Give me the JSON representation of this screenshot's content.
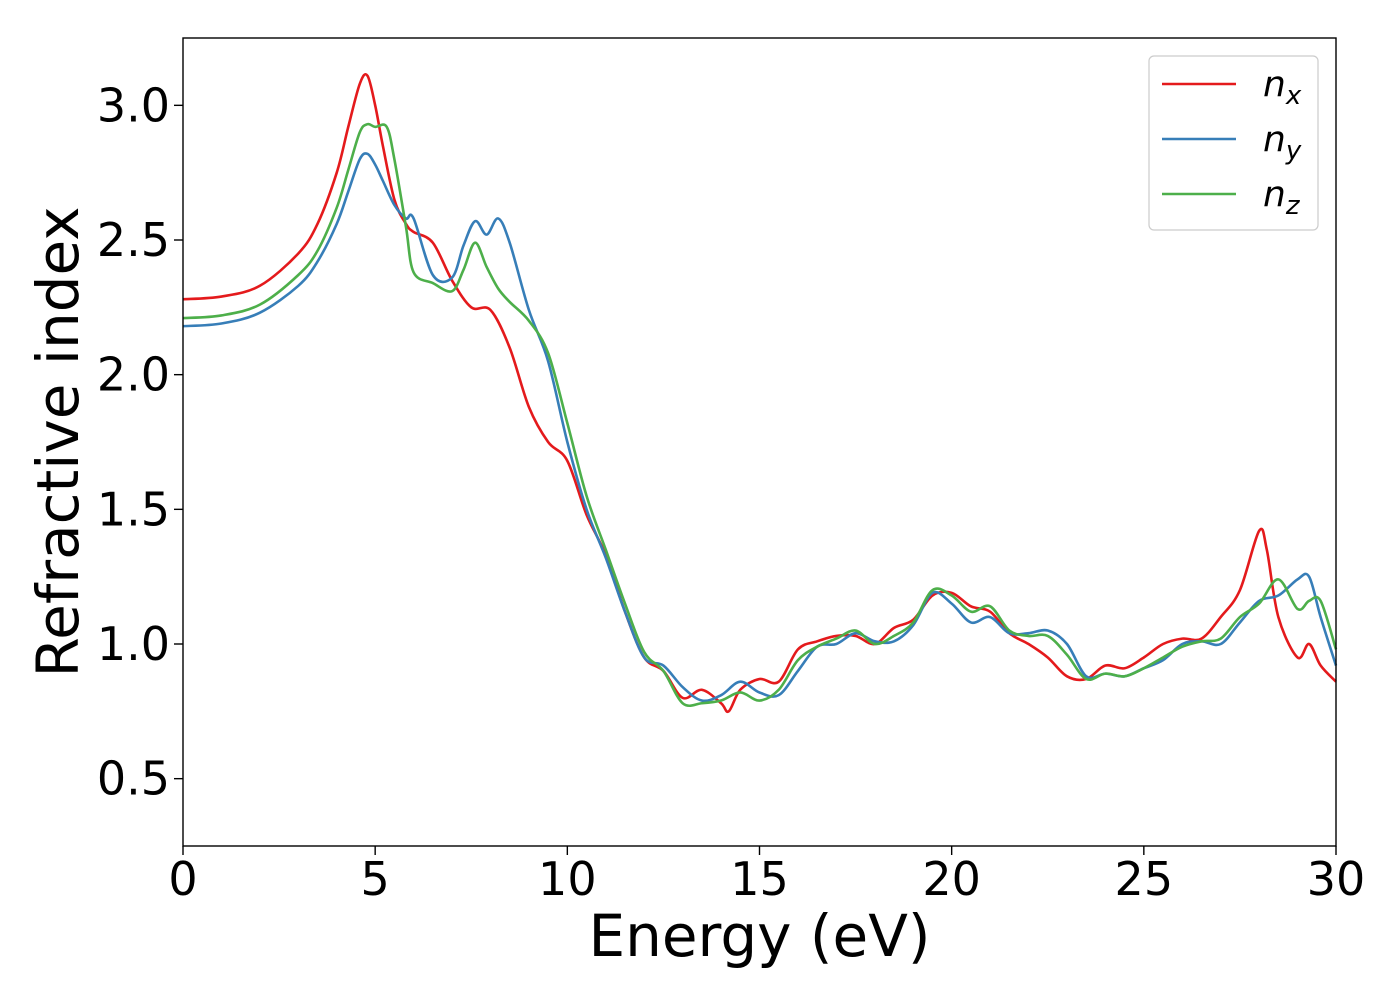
{
  "chart_data": {
    "type": "line",
    "title": "",
    "xlabel": "Energy (eV)",
    "ylabel": "Refractive index",
    "xlim": [
      0,
      30
    ],
    "ylim": [
      0.25,
      3.25
    ],
    "xticks": [
      0,
      5,
      10,
      15,
      20,
      25,
      30
    ],
    "xtick_labels": [
      "0",
      "5",
      "10",
      "15",
      "20",
      "25",
      "30"
    ],
    "yticks": [
      0.5,
      1.0,
      1.5,
      2.0,
      2.5,
      3.0
    ],
    "ytick_labels": [
      "0.5",
      "1.0",
      "1.5",
      "2.0",
      "2.5",
      "3.0"
    ],
    "grid": false,
    "legend_position": "top-right",
    "series": [
      {
        "name": "n_x",
        "label_main": "n",
        "label_sub": "x",
        "color": "#e41a1c",
        "x": [
          0,
          1,
          2,
          3,
          3.5,
          4,
          4.3,
          4.6,
          4.8,
          5.0,
          5.2,
          5.5,
          5.8,
          6.0,
          6.5,
          7.0,
          7.5,
          8.0,
          8.5,
          9.0,
          9.5,
          10.0,
          10.5,
          11.0,
          11.5,
          12.0,
          12.5,
          13.0,
          13.5,
          14.0,
          14.2,
          14.5,
          15.0,
          15.5,
          16.0,
          16.5,
          17.0,
          17.5,
          18.0,
          18.5,
          19.0,
          19.5,
          20.0,
          20.5,
          21.0,
          21.5,
          22.0,
          22.5,
          23.0,
          23.5,
          24.0,
          24.5,
          25.0,
          25.5,
          26.0,
          26.5,
          27.0,
          27.5,
          28.0,
          28.2,
          28.5,
          29.0,
          29.3,
          29.6,
          30.0
        ],
        "y": [
          2.28,
          2.29,
          2.33,
          2.45,
          2.56,
          2.75,
          2.92,
          3.08,
          3.11,
          3.0,
          2.85,
          2.65,
          2.56,
          2.53,
          2.49,
          2.35,
          2.25,
          2.24,
          2.1,
          1.88,
          1.75,
          1.68,
          1.48,
          1.33,
          1.12,
          0.95,
          0.9,
          0.8,
          0.83,
          0.78,
          0.75,
          0.83,
          0.87,
          0.86,
          0.98,
          1.01,
          1.03,
          1.03,
          1.0,
          1.06,
          1.09,
          1.18,
          1.19,
          1.14,
          1.12,
          1.04,
          1.0,
          0.95,
          0.88,
          0.87,
          0.92,
          0.91,
          0.95,
          1.0,
          1.02,
          1.02,
          1.1,
          1.2,
          1.42,
          1.35,
          1.1,
          0.95,
          1.0,
          0.92,
          0.86
        ]
      },
      {
        "name": "n_y",
        "label_main": "n",
        "label_sub": "y",
        "color": "#377eb8",
        "x": [
          0,
          1,
          2,
          3,
          3.5,
          4,
          4.3,
          4.6,
          4.8,
          5.0,
          5.2,
          5.5,
          5.8,
          6.0,
          6.5,
          7.0,
          7.3,
          7.6,
          7.9,
          8.2,
          8.5,
          9.0,
          9.5,
          10.0,
          10.5,
          11.0,
          11.5,
          12.0,
          12.5,
          13.0,
          13.5,
          14.0,
          14.5,
          15.0,
          15.5,
          16.0,
          16.5,
          17.0,
          17.5,
          18.0,
          18.5,
          19.0,
          19.5,
          20.0,
          20.5,
          21.0,
          21.5,
          22.0,
          22.5,
          23.0,
          23.5,
          24.0,
          24.5,
          25.0,
          25.5,
          26.0,
          26.5,
          27.0,
          27.5,
          28.0,
          28.5,
          29.0,
          29.3,
          29.6,
          30.0
        ],
        "y": [
          2.18,
          2.19,
          2.23,
          2.33,
          2.42,
          2.56,
          2.68,
          2.8,
          2.82,
          2.78,
          2.72,
          2.63,
          2.58,
          2.58,
          2.37,
          2.36,
          2.48,
          2.57,
          2.52,
          2.58,
          2.49,
          2.24,
          2.05,
          1.75,
          1.5,
          1.32,
          1.12,
          0.95,
          0.92,
          0.84,
          0.79,
          0.81,
          0.86,
          0.82,
          0.81,
          0.9,
          0.99,
          1.0,
          1.04,
          1.01,
          1.01,
          1.07,
          1.19,
          1.15,
          1.08,
          1.1,
          1.04,
          1.04,
          1.05,
          1.0,
          0.88,
          0.89,
          0.88,
          0.91,
          0.94,
          1.0,
          1.01,
          1.0,
          1.08,
          1.16,
          1.18,
          1.24,
          1.25,
          1.1,
          0.92
        ]
      },
      {
        "name": "n_z",
        "label_main": "n",
        "label_sub": "z",
        "color": "#4daf4a",
        "x": [
          0,
          1,
          2,
          3,
          3.5,
          4,
          4.3,
          4.6,
          4.8,
          5.0,
          5.3,
          5.5,
          5.8,
          6.0,
          6.5,
          7.0,
          7.3,
          7.6,
          7.9,
          8.2,
          8.5,
          9.0,
          9.5,
          10.0,
          10.5,
          11.0,
          11.5,
          12.0,
          12.5,
          13.0,
          13.5,
          14.0,
          14.5,
          15.0,
          15.5,
          16.0,
          16.5,
          17.0,
          17.5,
          18.0,
          18.5,
          19.0,
          19.5,
          20.0,
          20.5,
          21.0,
          21.5,
          22.0,
          22.5,
          23.0,
          23.5,
          24.0,
          24.5,
          25.0,
          25.5,
          26.0,
          26.5,
          27.0,
          27.5,
          28.0,
          28.5,
          29.0,
          29.3,
          29.6,
          30.0
        ],
        "y": [
          2.21,
          2.22,
          2.26,
          2.37,
          2.46,
          2.62,
          2.76,
          2.9,
          2.93,
          2.92,
          2.92,
          2.8,
          2.55,
          2.38,
          2.34,
          2.31,
          2.39,
          2.49,
          2.4,
          2.32,
          2.27,
          2.2,
          2.08,
          1.82,
          1.55,
          1.35,
          1.15,
          0.97,
          0.9,
          0.78,
          0.78,
          0.79,
          0.82,
          0.79,
          0.83,
          0.94,
          0.99,
          1.02,
          1.05,
          1.0,
          1.03,
          1.08,
          1.2,
          1.18,
          1.12,
          1.14,
          1.05,
          1.03,
          1.03,
          0.96,
          0.87,
          0.89,
          0.88,
          0.91,
          0.95,
          0.99,
          1.01,
          1.02,
          1.1,
          1.15,
          1.24,
          1.13,
          1.16,
          1.16,
          0.98
        ]
      }
    ]
  }
}
